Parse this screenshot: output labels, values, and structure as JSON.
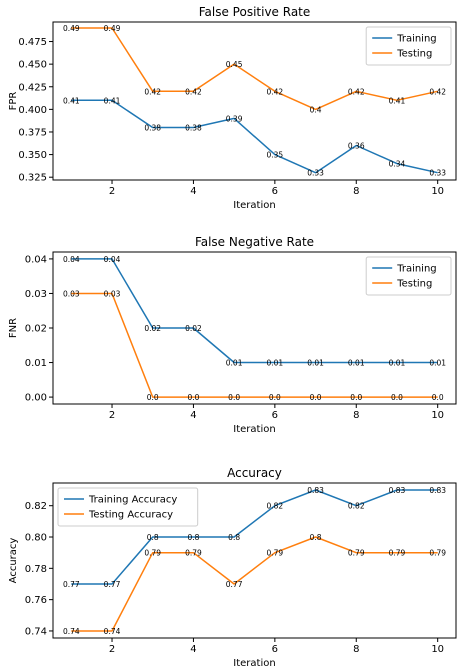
{
  "colors": {
    "series_1": "#1f77b4",
    "series_2": "#ff7f0e",
    "axes": "#000000"
  },
  "chart_data": [
    {
      "type": "line",
      "title": "False Positive Rate",
      "xlabel": "Iteration",
      "ylabel": "FPR",
      "x": [
        1,
        2,
        3,
        4,
        5,
        6,
        7,
        8,
        9,
        10
      ],
      "xlim": [
        0.55,
        10.45
      ],
      "ylim": [
        0.3219,
        0.4966
      ],
      "xticks": [
        2,
        4,
        6,
        8,
        10
      ],
      "xtick_labels": [
        "2",
        "4",
        "6",
        "8",
        "10"
      ],
      "yticks": [
        0.325,
        0.35,
        0.375,
        0.4,
        0.425,
        0.45,
        0.475
      ],
      "ytick_labels": [
        "0.325",
        "0.350",
        "0.375",
        "0.400",
        "0.425",
        "0.450",
        "0.475"
      ],
      "grid": false,
      "legend": "top-right",
      "series": [
        {
          "name": "Training",
          "color": "#1f77b4",
          "values": [
            0.41,
            0.41,
            0.38,
            0.38,
            0.39,
            0.35,
            0.33,
            0.36,
            0.34,
            0.33
          ],
          "labels": [
            "0.41",
            "0.41",
            "0.38",
            "0.38",
            "0.39",
            "0.35",
            "0.33",
            "0.36",
            "0.34",
            "0.33"
          ]
        },
        {
          "name": "Testing",
          "color": "#ff7f0e",
          "values": [
            0.49,
            0.49,
            0.42,
            0.42,
            0.45,
            0.42,
            0.4,
            0.42,
            0.41,
            0.42
          ],
          "labels": [
            "0.49",
            "0.49",
            "0.42",
            "0.42",
            "0.45",
            "0.42",
            "0.4",
            "0.42",
            "0.41",
            "0.42"
          ]
        }
      ]
    },
    {
      "type": "line",
      "title": "False Negative Rate",
      "xlabel": "Iteration",
      "ylabel": "FNR",
      "x": [
        1,
        2,
        3,
        4,
        5,
        6,
        7,
        8,
        9,
        10
      ],
      "xlim": [
        0.55,
        10.45
      ],
      "ylim": [
        -0.002,
        0.042
      ],
      "xticks": [
        2,
        4,
        6,
        8,
        10
      ],
      "xtick_labels": [
        "2",
        "4",
        "6",
        "8",
        "10"
      ],
      "yticks": [
        0,
        0.01,
        0.02,
        0.03,
        0.04
      ],
      "ytick_labels": [
        "0.00",
        "0.01",
        "0.02",
        "0.03",
        "0.04"
      ],
      "grid": false,
      "legend": "top-right",
      "series": [
        {
          "name": "Training",
          "color": "#1f77b4",
          "values": [
            0.04,
            0.04,
            0.02,
            0.02,
            0.01,
            0.01,
            0.01,
            0.01,
            0.01,
            0.01
          ],
          "labels": [
            "0.04",
            "0.04",
            "0.02",
            "0.02",
            "0.01",
            "0.01",
            "0.01",
            "0.01",
            "0.01",
            "0.01"
          ]
        },
        {
          "name": "Testing",
          "color": "#ff7f0e",
          "values": [
            0.03,
            0.03,
            0.0,
            0.0,
            0.0,
            0.0,
            0.0,
            0.0,
            0.0,
            0.0
          ],
          "labels": [
            "0.03",
            "0.03",
            "0.0",
            "0.0",
            "0.0",
            "0.0",
            "0.0",
            "0.0",
            "0.0",
            "0.0"
          ]
        }
      ]
    },
    {
      "type": "line",
      "title": "Accuracy",
      "xlabel": "Iteration",
      "ylabel": "Accuracy",
      "x": [
        1,
        2,
        3,
        4,
        5,
        6,
        7,
        8,
        9,
        10
      ],
      "xlim": [
        0.55,
        10.45
      ],
      "ylim": [
        0.7355,
        0.8345
      ],
      "xticks": [
        2,
        4,
        6,
        8,
        10
      ],
      "xtick_labels": [
        "2",
        "4",
        "6",
        "8",
        "10"
      ],
      "yticks": [
        0.74,
        0.76,
        0.78,
        0.8,
        0.82
      ],
      "ytick_labels": [
        "0.74",
        "0.76",
        "0.78",
        "0.80",
        "0.82"
      ],
      "grid": false,
      "legend": "top-left",
      "series": [
        {
          "name": "Training Accuracy",
          "color": "#1f77b4",
          "values": [
            0.77,
            0.77,
            0.8,
            0.8,
            0.8,
            0.82,
            0.83,
            0.82,
            0.83,
            0.83
          ],
          "labels": [
            "0.77",
            "0.77",
            "0.8",
            "0.8",
            "0.8",
            "0.82",
            "0.83",
            "0.82",
            "0.83",
            "0.83"
          ]
        },
        {
          "name": "Testing Accuracy",
          "color": "#ff7f0e",
          "values": [
            0.74,
            0.74,
            0.79,
            0.79,
            0.77,
            0.79,
            0.8,
            0.79,
            0.79,
            0.79
          ],
          "labels": [
            "0.74",
            "0.74",
            "0.79",
            "0.79",
            "0.77",
            "0.79",
            "0.8",
            "0.79",
            "0.79",
            "0.79"
          ]
        }
      ]
    }
  ]
}
